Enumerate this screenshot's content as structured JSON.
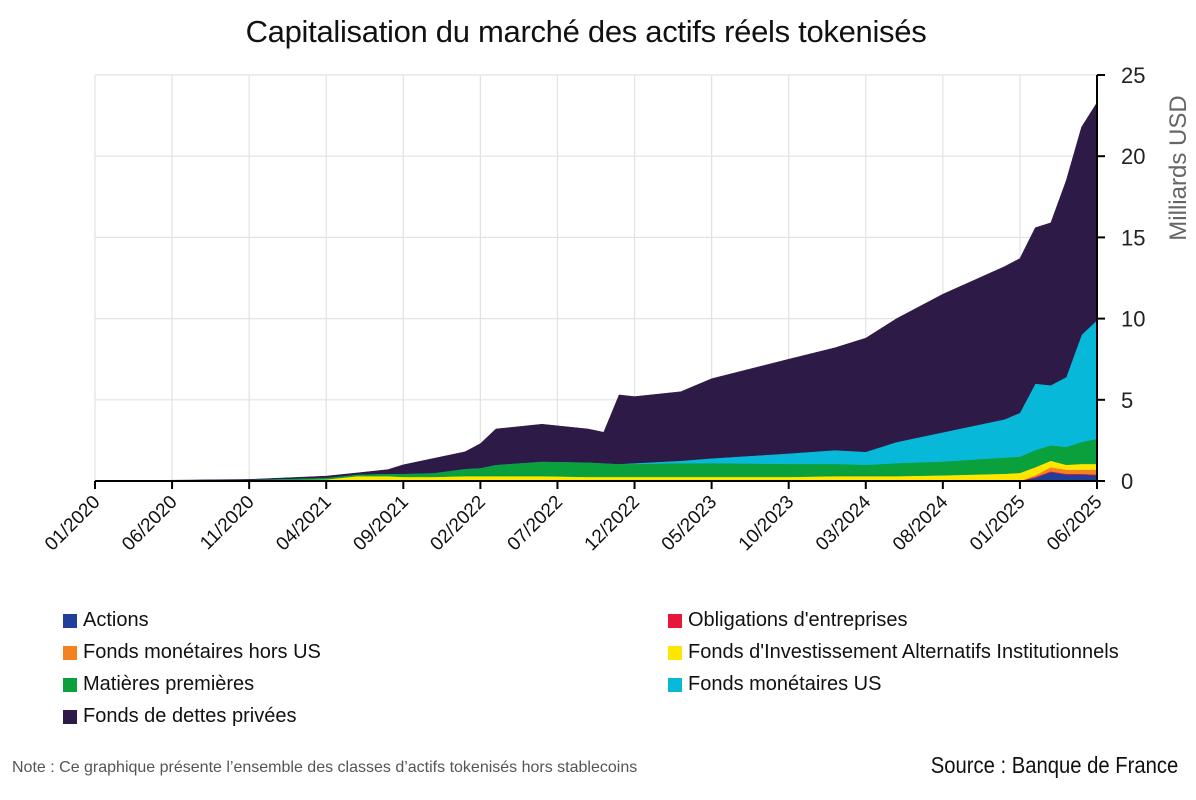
{
  "chart_data": {
    "type": "area",
    "stacked": true,
    "title": "Capitalisation du marché des actifs réels tokenisés",
    "ylabel": "Milliards USD",
    "xlabel": "",
    "ylim": [
      0,
      25
    ],
    "yticks": [
      0,
      5,
      10,
      15,
      20,
      25
    ],
    "y_axis_side": "right",
    "grid": true,
    "legend_position": "bottom",
    "xticks": [
      "01/2020",
      "06/2020",
      "11/2020",
      "04/2021",
      "09/2021",
      "02/2022",
      "07/2022",
      "12/2022",
      "05/2023",
      "10/2023",
      "03/2024",
      "08/2024",
      "01/2025",
      "06/2025"
    ],
    "x": [
      "01/2020",
      "06/2020",
      "11/2020",
      "04/2021",
      "06/2021",
      "08/2021",
      "09/2021",
      "11/2021",
      "01/2022",
      "02/2022",
      "03/2022",
      "06/2022",
      "09/2022",
      "10/2022",
      "11/2022",
      "12/2022",
      "03/2023",
      "05/2023",
      "10/2023",
      "01/2024",
      "03/2024",
      "05/2024",
      "08/2024",
      "12/2024",
      "01/2025",
      "02/2025",
      "03/2025",
      "04/2025",
      "05/2025",
      "06/2025"
    ],
    "series": [
      {
        "name": "Actions",
        "color": "#1f3f99",
        "values": [
          0,
          0,
          0,
          0,
          0,
          0,
          0,
          0,
          0,
          0,
          0,
          0,
          0,
          0,
          0,
          0,
          0,
          0,
          0,
          0,
          0,
          0,
          0,
          0,
          0,
          0.2,
          0.55,
          0.4,
          0.4,
          0.35
        ]
      },
      {
        "name": "Obligations d'entreprises",
        "color": "#e8163c",
        "values": [
          0,
          0,
          0,
          0,
          0,
          0,
          0,
          0,
          0,
          0,
          0,
          0,
          0,
          0,
          0,
          0,
          0,
          0,
          0,
          0,
          0,
          0,
          0,
          0,
          0,
          0.05,
          0.05,
          0.05,
          0.05,
          0.05
        ]
      },
      {
        "name": "Fonds monétaires hors US",
        "color": "#f58220",
        "values": [
          0,
          0,
          0,
          0,
          0,
          0,
          0,
          0,
          0,
          0,
          0,
          0,
          0,
          0,
          0,
          0,
          0,
          0,
          0,
          0,
          0,
          0,
          0,
          0,
          0,
          0.1,
          0.25,
          0.25,
          0.25,
          0.3
        ]
      },
      {
        "name": "Fonds d'Investissement Alternatifs Institutionnels",
        "color": "#ffe600",
        "values": [
          0,
          0.02,
          0.05,
          0.1,
          0.3,
          0.3,
          0.25,
          0.25,
          0.3,
          0.3,
          0.3,
          0.3,
          0.25,
          0.25,
          0.25,
          0.25,
          0.25,
          0.25,
          0.25,
          0.3,
          0.3,
          0.3,
          0.35,
          0.45,
          0.5,
          0.5,
          0.4,
          0.3,
          0.35,
          0.35
        ]
      },
      {
        "name": "Matières premières",
        "color": "#0aa03c",
        "values": [
          0,
          0.01,
          0.03,
          0.1,
          0.1,
          0.15,
          0.2,
          0.25,
          0.45,
          0.5,
          0.7,
          0.9,
          0.9,
          0.85,
          0.8,
          0.8,
          0.85,
          0.85,
          0.8,
          0.75,
          0.7,
          0.8,
          0.85,
          1.0,
          1.0,
          1.05,
          0.95,
          1.1,
          1.35,
          1.55
        ]
      },
      {
        "name": "Fonds monétaires US",
        "color": "#08b8d8",
        "values": [
          0,
          0,
          0,
          0,
          0,
          0,
          0,
          0,
          0,
          0,
          0,
          0,
          0,
          0,
          0,
          0.05,
          0.15,
          0.3,
          0.65,
          0.85,
          0.8,
          1.3,
          1.8,
          2.35,
          2.7,
          4.1,
          3.7,
          4.3,
          6.6,
          7.3
        ]
      },
      {
        "name": "Fonds de dettes privées",
        "color": "#2e1a47",
        "values": [
          0,
          0.02,
          0.02,
          0.1,
          0.1,
          0.25,
          0.55,
          0.9,
          1.05,
          1.5,
          2.2,
          2.3,
          2.05,
          1.9,
          4.25,
          4.1,
          4.25,
          4.9,
          5.8,
          6.3,
          7.0,
          7.6,
          8.5,
          9.4,
          9.5,
          9.6,
          10.0,
          12.1,
          12.8,
          13.4
        ]
      }
    ],
    "legend_order": [
      0,
      1,
      2,
      3,
      4,
      5,
      6
    ]
  },
  "note": "Note : Ce graphique présente l’ensemble des classes d’actifs tokenisés hors stablecoins",
  "source": "Source : Banque de France"
}
